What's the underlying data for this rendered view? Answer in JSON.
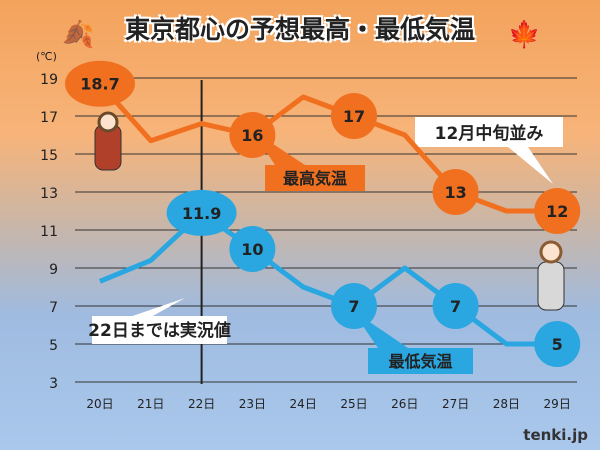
{
  "title": "東京都心の予想最高・最低気温",
  "unit": "(℃)",
  "logo": "tenki.jp",
  "chart_data": {
    "type": "line",
    "categories": [
      "20日",
      "21日",
      "22日",
      "23日",
      "24日",
      "25日",
      "26日",
      "27日",
      "28日",
      "29日"
    ],
    "ylim": [
      3,
      19
    ],
    "yticks": [
      3,
      5,
      7,
      9,
      11,
      13,
      15,
      17,
      19
    ],
    "grid": true,
    "series": [
      {
        "name": "最高気温",
        "color": "#f07020",
        "values": [
          18.7,
          15.7,
          16.6,
          16,
          18,
          17,
          16,
          13,
          12,
          12
        ],
        "labeled": [
          0,
          3,
          5,
          7,
          9
        ],
        "labels": [
          "18.7",
          "16",
          "17",
          "13",
          "12"
        ]
      },
      {
        "name": "最低気温",
        "color": "#2aa6e0",
        "values": [
          8.3,
          9.4,
          11.9,
          10,
          8,
          7,
          9,
          7,
          5,
          5
        ],
        "labeled": [
          2,
          3,
          5,
          7,
          9
        ],
        "labels": [
          "11.9",
          "10",
          "7",
          "7",
          "5"
        ]
      }
    ],
    "annotations": [
      "22日までは実況値",
      "12月中旬並み"
    ],
    "divider_after": "22日"
  }
}
